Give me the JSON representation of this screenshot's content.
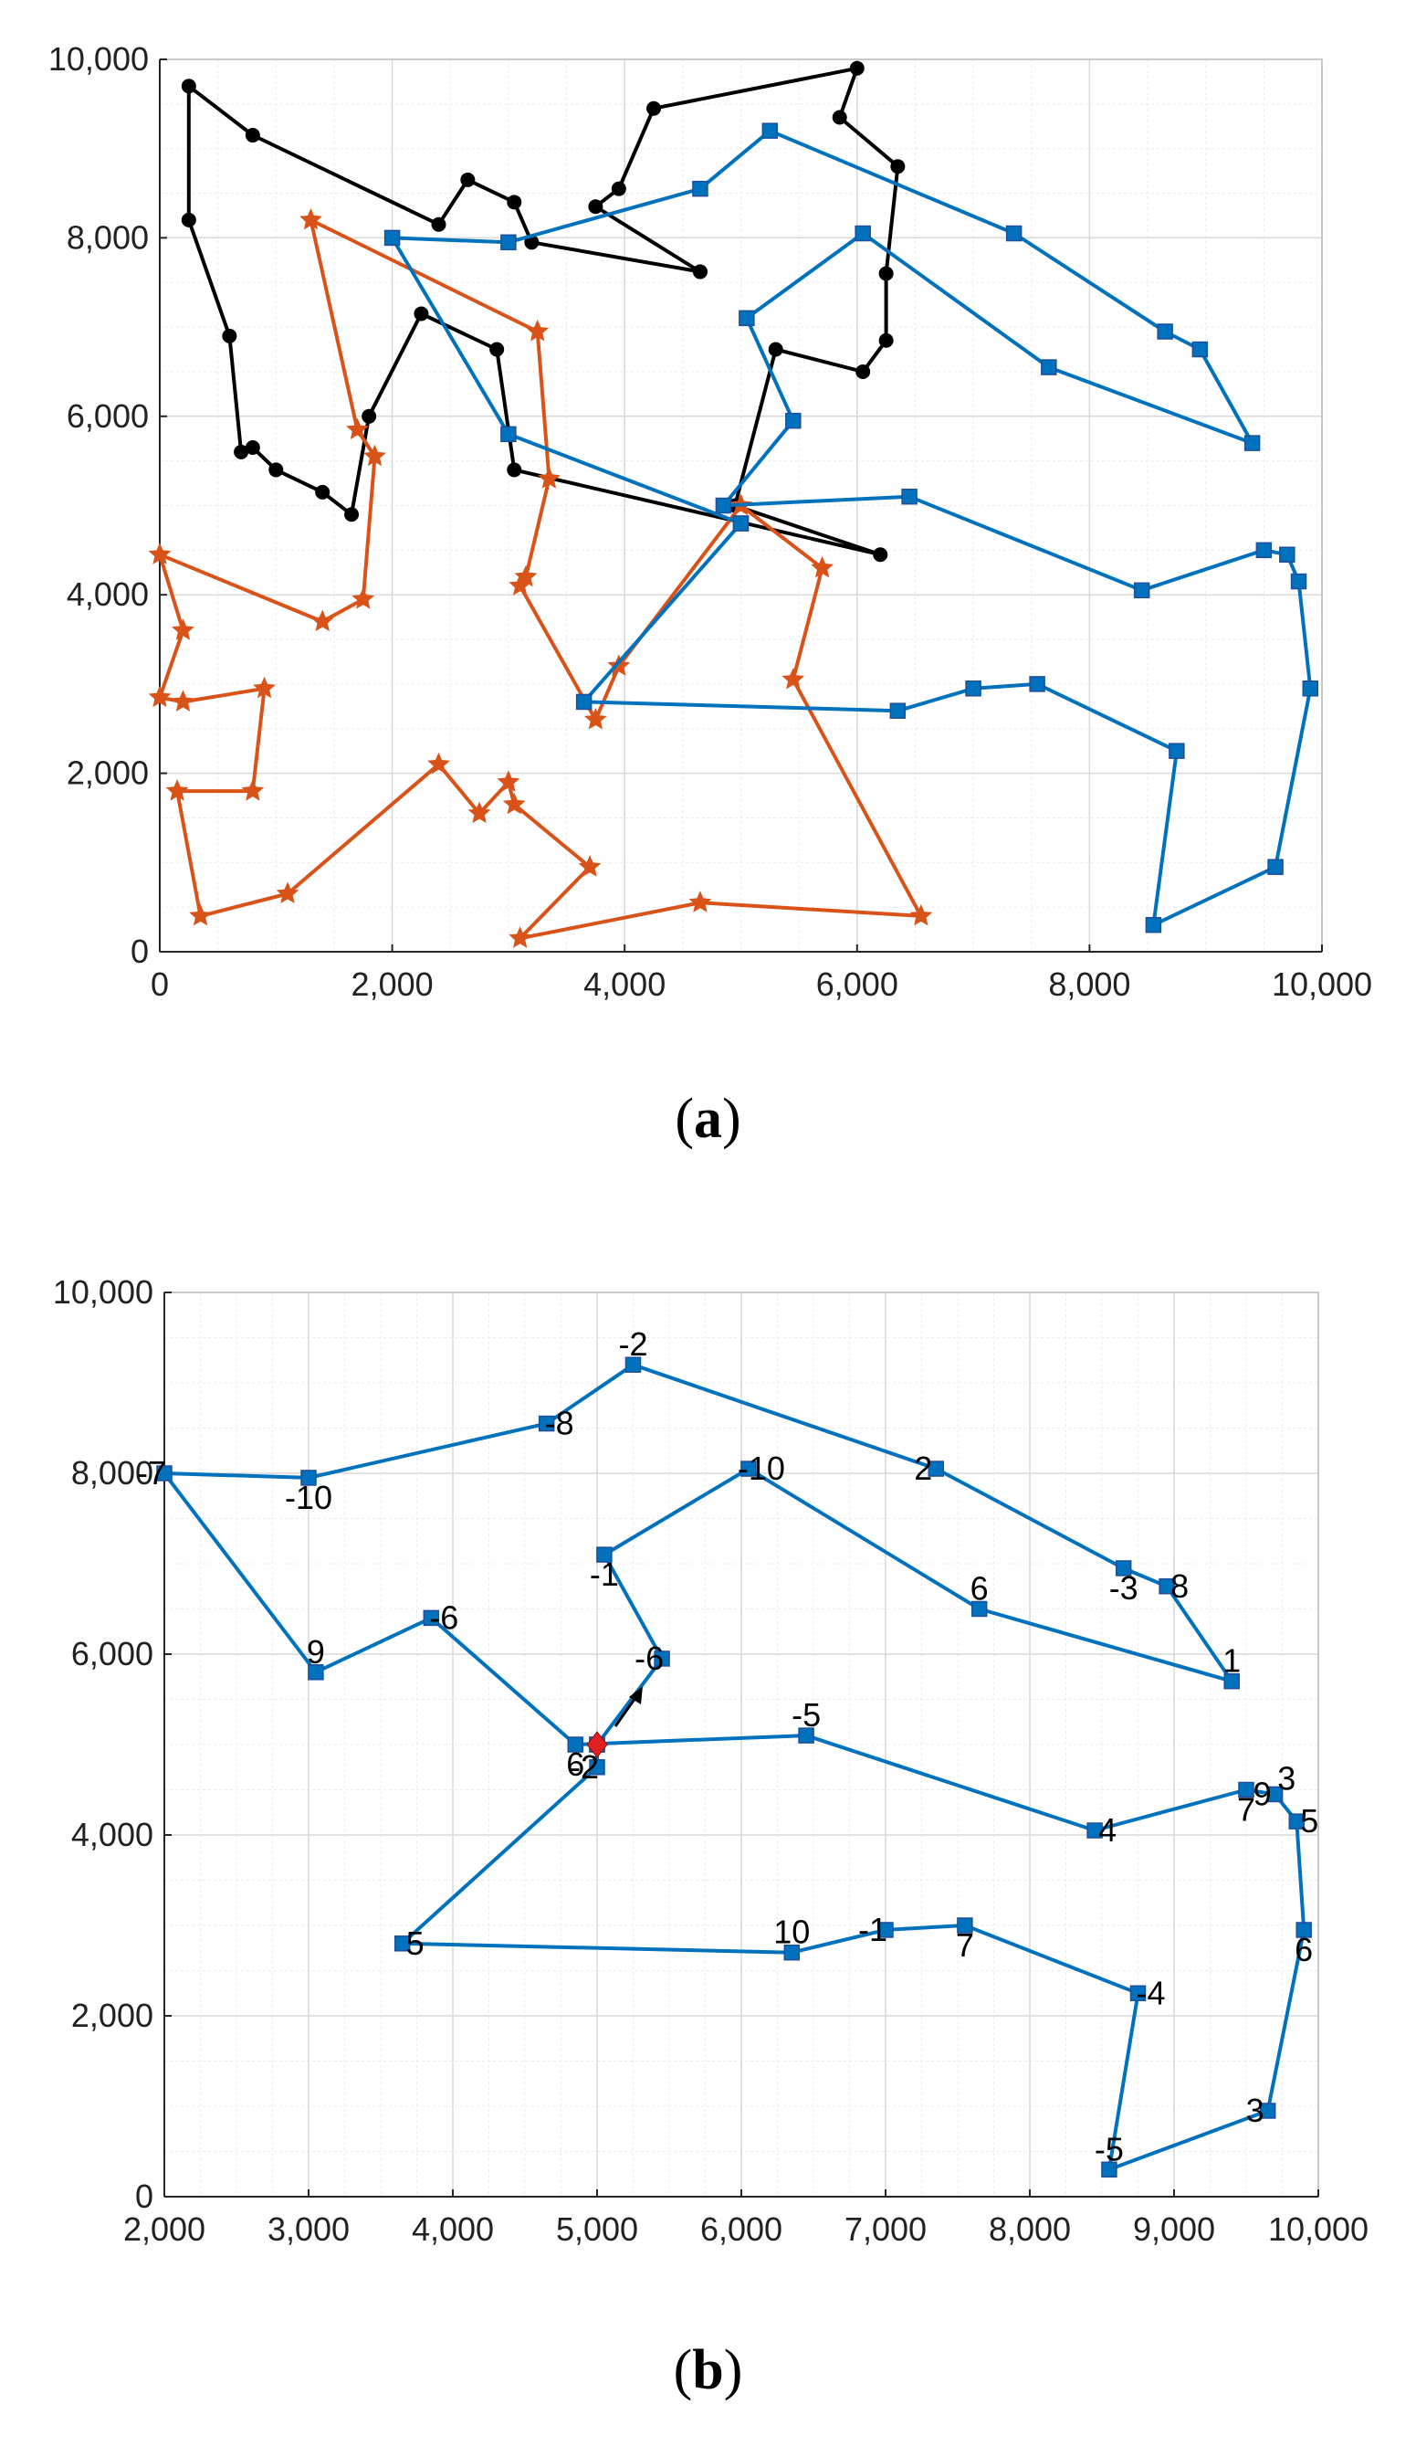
{
  "colors": {
    "black_route": "#000000",
    "orange_route": "#d95319",
    "blue_route": "#0072bd",
    "grid": "#d9d9d9",
    "depot": "#e02020"
  },
  "captions": {
    "a": "a",
    "b": "b"
  },
  "chart_data": [
    {
      "id": "a",
      "type": "line",
      "xlim": [
        0,
        10000
      ],
      "ylim": [
        0,
        10000
      ],
      "xticks": [
        0,
        2000,
        4000,
        6000,
        8000,
        10000
      ],
      "yticks": [
        0,
        2000,
        4000,
        6000,
        8000,
        10000
      ],
      "xtick_labels": [
        "0",
        "2,000",
        "4,000",
        "6,000",
        "8,000",
        "10,000"
      ],
      "ytick_labels": [
        "0",
        "2,000",
        "4,000",
        "6,000",
        "8,000",
        "10,000"
      ],
      "grid": true,
      "series": [
        {
          "name": "route-black",
          "color": "#000000",
          "marker": "circle",
          "points": [
            [
              4650,
              7620
            ],
            [
              3200,
              7950
            ],
            [
              3050,
              8400
            ],
            [
              2650,
              8650
            ],
            [
              2400,
              8150
            ],
            [
              800,
              9150
            ],
            [
              250,
              9700
            ],
            [
              250,
              8200
            ],
            [
              600,
              6900
            ],
            [
              700,
              5600
            ],
            [
              800,
              5650
            ],
            [
              1000,
              5400
            ],
            [
              1400,
              5150
            ],
            [
              1650,
              4900
            ],
            [
              1800,
              6000
            ],
            [
              2250,
              7150
            ],
            [
              2900,
              6750
            ],
            [
              3050,
              5400
            ],
            [
              6200,
              4450
            ],
            [
              4950,
              5000
            ],
            [
              5300,
              6750
            ],
            [
              6050,
              6500
            ],
            [
              6250,
              6850
            ],
            [
              6250,
              7600
            ],
            [
              6350,
              8800
            ],
            [
              5850,
              9350
            ],
            [
              6000,
              9900
            ],
            [
              4250,
              9450
            ],
            [
              3950,
              8550
            ],
            [
              3750,
              8350
            ],
            [
              4650,
              7620
            ]
          ]
        },
        {
          "name": "route-orange",
          "color": "#d95319",
          "marker": "star",
          "points": [
            [
              5000,
              5000
            ],
            [
              5700,
              4300
            ],
            [
              5450,
              3050
            ],
            [
              6550,
              400
            ],
            [
              4650,
              550
            ],
            [
              3100,
              150
            ],
            [
              3700,
              950
            ],
            [
              3050,
              1650
            ],
            [
              3000,
              1900
            ],
            [
              2750,
              1550
            ],
            [
              2400,
              2100
            ],
            [
              1100,
              650
            ],
            [
              350,
              400
            ],
            [
              150,
              1800
            ],
            [
              800,
              1800
            ],
            [
              900,
              2950
            ],
            [
              200,
              2800
            ],
            [
              0,
              2850
            ],
            [
              200,
              3600
            ],
            [
              0,
              4450
            ],
            [
              1400,
              3700
            ],
            [
              1750,
              3950
            ],
            [
              1850,
              5550
            ],
            [
              1700,
              5850
            ],
            [
              1300,
              8200
            ],
            [
              3250,
              6950
            ],
            [
              3350,
              5300
            ],
            [
              3150,
              4200
            ],
            [
              3100,
              4100
            ],
            [
              3750,
              2600
            ],
            [
              3950,
              3200
            ],
            [
              5000,
              5000
            ]
          ]
        },
        {
          "name": "route-blue",
          "color": "#0072bd",
          "marker": "square",
          "points": [
            [
              5000,
              4800
            ],
            [
              3000,
              5800
            ],
            [
              2000,
              8000
            ],
            [
              3000,
              7950
            ],
            [
              4650,
              8550
            ],
            [
              5250,
              9200
            ],
            [
              7350,
              8050
            ],
            [
              8650,
              6950
            ],
            [
              8950,
              6750
            ],
            [
              9400,
              5700
            ],
            [
              7650,
              6550
            ],
            [
              6050,
              8050
            ],
            [
              5050,
              7100
            ],
            [
              5450,
              5950
            ],
            [
              4850,
              5000
            ],
            [
              6450,
              5100
            ],
            [
              8450,
              4050
            ],
            [
              9500,
              4500
            ],
            [
              9700,
              4450
            ],
            [
              9800,
              4150
            ],
            [
              9900,
              2950
            ],
            [
              9600,
              950
            ],
            [
              8550,
              300
            ],
            [
              8750,
              2250
            ],
            [
              7550,
              3000
            ],
            [
              7000,
              2950
            ],
            [
              6350,
              2700
            ],
            [
              3650,
              2800
            ],
            [
              5000,
              4800
            ]
          ]
        }
      ]
    },
    {
      "id": "b",
      "type": "line",
      "xlim": [
        2000,
        10000
      ],
      "ylim": [
        0,
        10000
      ],
      "xticks": [
        2000,
        3000,
        4000,
        5000,
        6000,
        7000,
        8000,
        9000,
        10000
      ],
      "yticks": [
        0,
        2000,
        4000,
        6000,
        8000,
        10000
      ],
      "xtick_labels": [
        "2,000",
        "3,000",
        "4,000",
        "5,000",
        "6,000",
        "7,000",
        "8,000",
        "9,000",
        "10,000"
      ],
      "ytick_labels": [
        "0",
        "2,000",
        "4,000",
        "6,000",
        "8,000",
        "10,000"
      ],
      "grid": true,
      "depot": [
        5000,
        5000
      ],
      "series": [
        {
          "name": "route-blue-detail",
          "color": "#0072bd",
          "marker": "square",
          "points": [
            [
              5000,
              5000
            ],
            [
              5450,
              5950
            ],
            [
              5050,
              7100
            ],
            [
              6050,
              8050
            ],
            [
              7650,
              6500
            ],
            [
              9400,
              5700
            ],
            [
              8950,
              6750
            ],
            [
              8650,
              6950
            ],
            [
              7350,
              8050
            ],
            [
              5250,
              9200
            ],
            [
              4650,
              8550
            ],
            [
              3000,
              7950
            ],
            [
              2000,
              8000
            ],
            [
              3050,
              5800
            ],
            [
              3850,
              6400
            ],
            [
              4850,
              5000
            ],
            [
              6450,
              5100
            ],
            [
              8450,
              4050
            ],
            [
              9500,
              4500
            ],
            [
              9700,
              4450
            ],
            [
              9850,
              4150
            ],
            [
              9900,
              2950
            ],
            [
              9650,
              950
            ],
            [
              8550,
              300
            ],
            [
              8750,
              2250
            ],
            [
              7550,
              3000
            ],
            [
              7000,
              2950
            ],
            [
              6350,
              2700
            ],
            [
              3650,
              2800
            ],
            [
              5000,
              4750
            ],
            [
              5000,
              5000
            ]
          ],
          "point_labels": [
            {
              "x": 9400,
              "y": 5700,
              "text": "1"
            },
            {
              "x": 8950,
              "y": 6750,
              "text": "8"
            },
            {
              "x": 8650,
              "y": 6950,
              "text": "-3"
            },
            {
              "x": 7350,
              "y": 8050,
              "text": "2"
            },
            {
              "x": 7650,
              "y": 6500,
              "text": "6"
            },
            {
              "x": 6050,
              "y": 8050,
              "text": "-10"
            },
            {
              "x": 5050,
              "y": 7100,
              "text": "-1"
            },
            {
              "x": 5450,
              "y": 5950,
              "text": "-6"
            },
            {
              "x": 5250,
              "y": 9200,
              "text": "-2"
            },
            {
              "x": 4650,
              "y": 8550,
              "text": "-8"
            },
            {
              "x": 3000,
              "y": 7950,
              "text": "-10"
            },
            {
              "x": 2000,
              "y": 8000,
              "text": "-7"
            },
            {
              "x": 3050,
              "y": 5800,
              "text": "9"
            },
            {
              "x": 3850,
              "y": 6400,
              "text": "-6"
            },
            {
              "x": 4850,
              "y": 5000,
              "text": "6"
            },
            {
              "x": 5000,
              "y": 4750,
              "text": "-2"
            },
            {
              "x": 6450,
              "y": 5100,
              "text": "-5"
            },
            {
              "x": 8450,
              "y": 4050,
              "text": "4"
            },
            {
              "x": 9500,
              "y": 4500,
              "text": "7"
            },
            {
              "x": 9700,
              "y": 4450,
              "text": "9"
            },
            {
              "x": 9780,
              "y": 4400,
              "text": "3"
            },
            {
              "x": 9850,
              "y": 4150,
              "text": "5"
            },
            {
              "x": 9900,
              "y": 2950,
              "text": "6"
            },
            {
              "x": 9650,
              "y": 950,
              "text": "3"
            },
            {
              "x": 8550,
              "y": 300,
              "text": "-5"
            },
            {
              "x": 8750,
              "y": 2250,
              "text": "-4"
            },
            {
              "x": 7550,
              "y": 3000,
              "text": "7"
            },
            {
              "x": 7000,
              "y": 2950,
              "text": "-1"
            },
            {
              "x": 6350,
              "y": 2700,
              "text": "10"
            },
            {
              "x": 3650,
              "y": 2800,
              "text": "5"
            }
          ]
        }
      ]
    }
  ]
}
